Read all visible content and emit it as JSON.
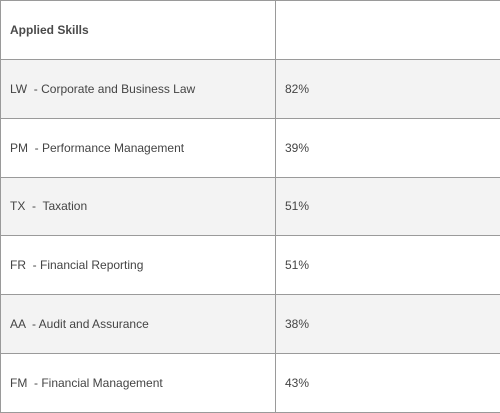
{
  "table": {
    "header": {
      "label": "Applied Skills",
      "value": ""
    },
    "rows": [
      {
        "subject": "LW  - Corporate and Business Law",
        "score": "82%"
      },
      {
        "subject": "PM  - Performance Management",
        "score": "39%"
      },
      {
        "subject": "TX  -  Taxation",
        "score": "51%"
      },
      {
        "subject": "FR  - Financial Reporting",
        "score": "51%"
      },
      {
        "subject": "AA  - Audit and Assurance",
        "score": "38%"
      },
      {
        "subject": "FM  - Financial Management",
        "score": "43%"
      }
    ]
  }
}
